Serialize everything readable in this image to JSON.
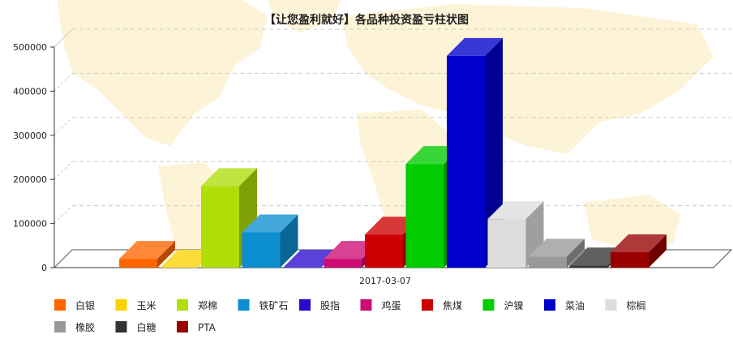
{
  "chart_data": {
    "type": "bar",
    "title": "【让您盈利就好】各品种投资盈亏柱状图",
    "xlabel": "",
    "ylabel": "",
    "categories": [
      "2017-03-07"
    ],
    "ylim": [
      0,
      500000
    ],
    "yticks": [
      0,
      100000,
      200000,
      300000,
      400000,
      500000
    ],
    "ytick_labels": [
      "0",
      "100000",
      "200000",
      "300000",
      "400000",
      "500000"
    ],
    "grid": true,
    "legend_position": "bottom",
    "series": [
      {
        "name": "白银",
        "values": [
          20000
        ],
        "color": "#ff6600"
      },
      {
        "name": "玉米",
        "values": [
          0
        ],
        "color": "#fcd202"
      },
      {
        "name": "郑棉",
        "values": [
          185000
        ],
        "color": "#b0de09"
      },
      {
        "name": "铁矿石",
        "values": [
          80000
        ],
        "color": "#0d8ecf"
      },
      {
        "name": "股指",
        "values": [
          0
        ],
        "color": "#2a0cd0"
      },
      {
        "name": "鸡蛋",
        "values": [
          20000
        ],
        "color": "#cd0d74"
      },
      {
        "name": "焦煤",
        "values": [
          75000
        ],
        "color": "#cc0000"
      },
      {
        "name": "沪镍",
        "values": [
          235000
        ],
        "color": "#00cc00"
      },
      {
        "name": "菜油",
        "values": [
          480000
        ],
        "color": "#0000cc"
      },
      {
        "name": "棕榈",
        "values": [
          110000
        ],
        "color": "#dddddd"
      },
      {
        "name": "橡胶",
        "values": [
          25000
        ],
        "color": "#999999"
      },
      {
        "name": "白糖",
        "values": [
          5000
        ],
        "color": "#333333"
      },
      {
        "name": "PTA",
        "values": [
          35000
        ],
        "color": "#990000"
      }
    ]
  }
}
